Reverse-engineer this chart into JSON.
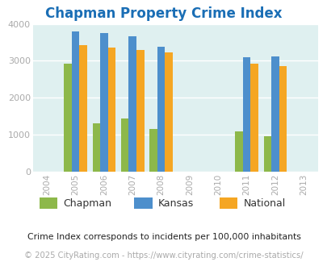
{
  "title": "Chapman Property Crime Index",
  "years": [
    2004,
    2005,
    2006,
    2007,
    2008,
    2009,
    2010,
    2011,
    2012,
    2013
  ],
  "data_years": [
    2005,
    2006,
    2007,
    2008,
    2011,
    2012
  ],
  "chapman": [
    2920,
    1300,
    1430,
    1160,
    1090,
    950
  ],
  "kansas": [
    3800,
    3760,
    3660,
    3380,
    3090,
    3130
  ],
  "national": [
    3420,
    3360,
    3290,
    3220,
    2920,
    2850
  ],
  "chapman_color": "#8db84a",
  "kansas_color": "#4d8fcc",
  "national_color": "#f5a623",
  "bg_color": "#dff0f0",
  "ylim": [
    0,
    4000
  ],
  "yticks": [
    0,
    1000,
    2000,
    3000,
    4000
  ],
  "bar_width": 0.27,
  "footnote1": "Crime Index corresponds to incidents per 100,000 inhabitants",
  "footnote2": "© 2025 CityRating.com - https://www.cityrating.com/crime-statistics/",
  "title_color": "#1a6eb5",
  "footnote1_color": "#222222",
  "footnote2_color": "#aaaaaa",
  "tick_color": "#aaaaaa",
  "grid_color": "#ffffff"
}
